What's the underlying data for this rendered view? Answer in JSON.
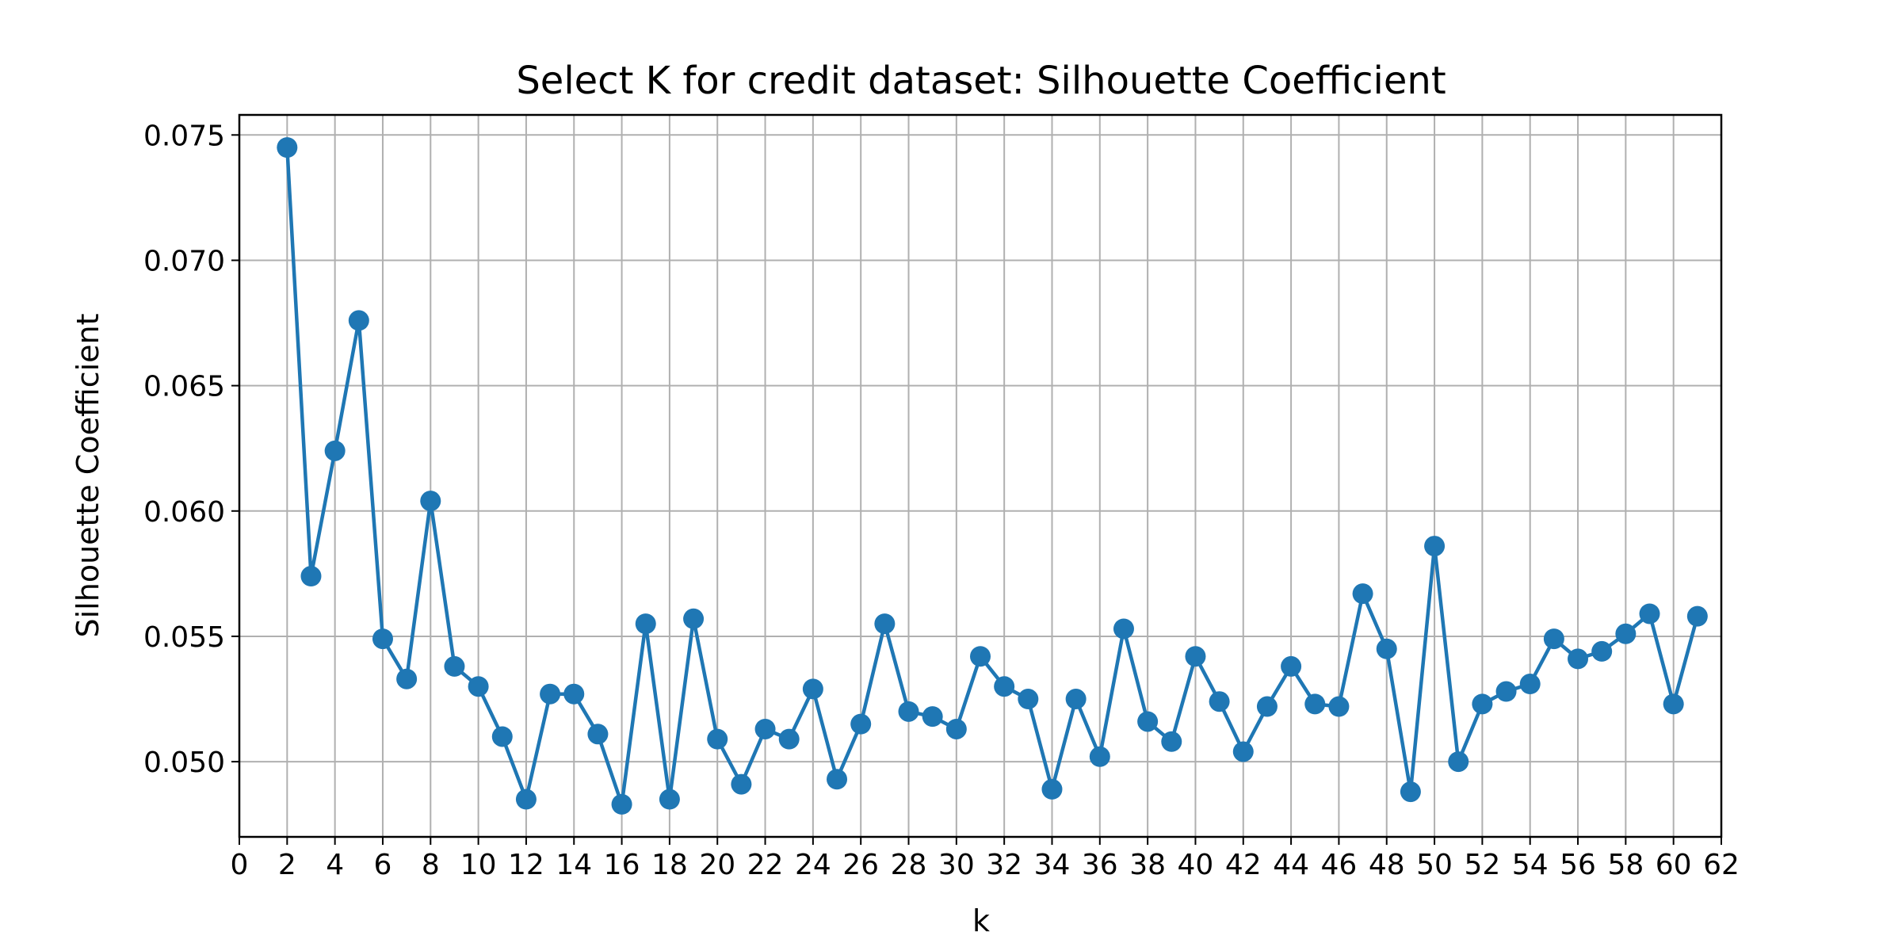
{
  "chart_data": {
    "type": "line",
    "title": "Select K for credit dataset: Silhouette Coefficient",
    "xlabel": "k",
    "ylabel": "Silhouette Coefficient",
    "xlim": [
      0,
      62
    ],
    "ylim": [
      0.047,
      0.0758
    ],
    "grid": true,
    "x_ticks": [
      0,
      2,
      4,
      6,
      8,
      10,
      12,
      14,
      16,
      18,
      20,
      22,
      24,
      26,
      28,
      30,
      32,
      34,
      36,
      38,
      40,
      42,
      44,
      46,
      48,
      50,
      52,
      54,
      56,
      58,
      60,
      62
    ],
    "y_ticks": [
      "0.050",
      "0.055",
      "0.060",
      "0.065",
      "0.070",
      "0.075"
    ],
    "series": [
      {
        "color": "#1f77b4",
        "marker": "circle",
        "x": [
          2,
          3,
          4,
          5,
          6,
          7,
          8,
          9,
          10,
          11,
          12,
          13,
          14,
          15,
          16,
          17,
          18,
          19,
          20,
          21,
          22,
          23,
          24,
          25,
          26,
          27,
          28,
          29,
          30,
          31,
          32,
          33,
          34,
          35,
          36,
          37,
          38,
          39,
          40,
          41,
          42,
          43,
          44,
          45,
          46,
          47,
          48,
          49,
          50,
          51,
          52,
          53,
          54,
          55,
          56,
          57,
          58,
          59,
          60,
          61
        ],
        "y": [
          0.0745,
          0.0574,
          0.0624,
          0.0676,
          0.0549,
          0.0533,
          0.0604,
          0.0538,
          0.053,
          0.051,
          0.0485,
          0.0527,
          0.0527,
          0.0511,
          0.0483,
          0.0555,
          0.0485,
          0.0557,
          0.0509,
          0.0491,
          0.0513,
          0.0509,
          0.0529,
          0.0493,
          0.0515,
          0.0555,
          0.052,
          0.0518,
          0.0513,
          0.0542,
          0.053,
          0.0525,
          0.0489,
          0.0525,
          0.0502,
          0.0553,
          0.0516,
          0.0508,
          0.0542,
          0.0524,
          0.0504,
          0.0522,
          0.0538,
          0.0523,
          0.0522,
          0.0567,
          0.0545,
          0.0488,
          0.0586,
          0.05,
          0.0523,
          0.0528,
          0.0531,
          0.0549,
          0.0541,
          0.0544,
          0.0551,
          0.0559,
          0.0523,
          0.0558
        ]
      }
    ]
  }
}
